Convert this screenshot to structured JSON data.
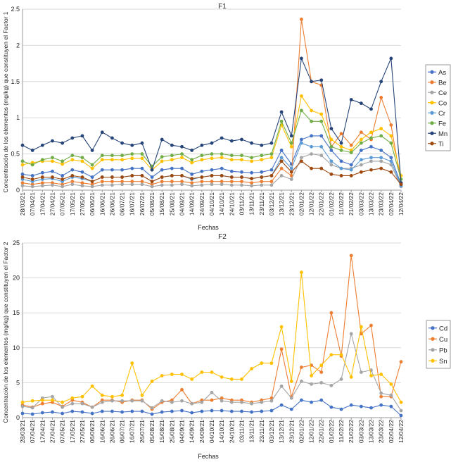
{
  "chart_data": [
    {
      "type": "line",
      "title": "F1",
      "xlabel": "Fechas",
      "ylabel": "Concentración de los elementos (mg/kg) que constituyen el Factor 1",
      "ylim": [
        0,
        2.5
      ],
      "yticks": [
        "0",
        "0.5",
        "1",
        "1.5",
        "2",
        "2.5"
      ],
      "ytick_values": [
        0,
        0.5,
        1,
        1.5,
        2,
        2.5
      ],
      "grid": true,
      "legend_position": "right",
      "x_dates": [
        "28/03/21",
        "07/04/21",
        "17/04/21",
        "27/04/21",
        "07/05/21",
        "17/05/21",
        "27/05/21",
        "06/06/21",
        "16/06/21",
        "26/06/21",
        "06/07/21",
        "16/07/21",
        "26/07/21",
        "05/08/21",
        "15/08/21",
        "25/08/21",
        "04/09/21",
        "14/09/21",
        "24/09/21",
        "04/10/21",
        "14/10/21",
        "24/10/21",
        "03/11/21",
        "13/11/21",
        "23/11/21",
        "03/12/21",
        "13/12/21",
        "23/12/21",
        "02/01/22",
        "12/01/22",
        "22/01/22",
        "01/02/22",
        "11/02/22",
        "21/02/22",
        "03/03/22",
        "13/03/22",
        "23/03/22",
        "02/04/22",
        "12/04/22"
      ],
      "series": [
        {
          "name": "As",
          "color": "#4472c4",
          "values": [
            0.22,
            0.2,
            0.24,
            0.26,
            0.2,
            0.28,
            0.25,
            0.18,
            0.28,
            0.28,
            0.28,
            0.3,
            0.3,
            0.18,
            0.28,
            0.3,
            0.3,
            0.22,
            0.26,
            0.28,
            0.3,
            0.26,
            0.25,
            0.24,
            0.25,
            0.28,
            0.55,
            0.36,
            0.7,
            0.75,
            0.75,
            0.55,
            0.4,
            0.35,
            0.55,
            0.6,
            0.55,
            0.45,
            0.08
          ]
        },
        {
          "name": "Be",
          "color": "#ed7d31",
          "values": [
            0.1,
            0.08,
            0.1,
            0.1,
            0.08,
            0.12,
            0.1,
            0.08,
            0.12,
            0.12,
            0.12,
            0.12,
            0.12,
            0.08,
            0.12,
            0.12,
            0.12,
            0.1,
            0.12,
            0.12,
            0.12,
            0.12,
            0.12,
            0.1,
            0.12,
            0.12,
            0.3,
            0.2,
            2.36,
            1.5,
            1.45,
            0.6,
            0.78,
            0.62,
            0.8,
            0.7,
            1.28,
            0.9,
            0.1
          ]
        },
        {
          "name": "Ce",
          "color": "#a5a5a5",
          "values": [
            0.06,
            0.05,
            0.06,
            0.07,
            0.05,
            0.08,
            0.06,
            0.05,
            0.07,
            0.07,
            0.08,
            0.08,
            0.08,
            0.05,
            0.07,
            0.07,
            0.08,
            0.06,
            0.07,
            0.08,
            0.08,
            0.07,
            0.07,
            0.06,
            0.07,
            0.07,
            0.2,
            0.15,
            0.45,
            0.5,
            0.48,
            0.35,
            0.3,
            0.3,
            0.35,
            0.4,
            0.4,
            0.35,
            0.05
          ]
        },
        {
          "name": "Co",
          "color": "#ffc000",
          "values": [
            0.35,
            0.38,
            0.4,
            0.4,
            0.36,
            0.42,
            0.4,
            0.3,
            0.42,
            0.42,
            0.42,
            0.44,
            0.44,
            0.28,
            0.4,
            0.42,
            0.45,
            0.38,
            0.42,
            0.44,
            0.45,
            0.42,
            0.42,
            0.4,
            0.42,
            0.45,
            0.9,
            0.6,
            1.3,
            1.1,
            1.05,
            0.7,
            0.6,
            0.55,
            0.7,
            0.8,
            0.85,
            0.75,
            0.2
          ]
        },
        {
          "name": "Cr",
          "color": "#5b9bd5",
          "values": [
            0.15,
            0.12,
            0.15,
            0.16,
            0.12,
            0.18,
            0.16,
            0.12,
            0.18,
            0.18,
            0.18,
            0.2,
            0.2,
            0.12,
            0.18,
            0.2,
            0.2,
            0.15,
            0.18,
            0.2,
            0.2,
            0.18,
            0.18,
            0.16,
            0.18,
            0.2,
            0.45,
            0.3,
            0.65,
            0.6,
            0.6,
            0.4,
            0.3,
            0.28,
            0.42,
            0.45,
            0.45,
            0.4,
            0.06
          ]
        },
        {
          "name": "Fe",
          "color": "#70ad47",
          "values": [
            0.4,
            0.35,
            0.42,
            0.45,
            0.4,
            0.48,
            0.45,
            0.35,
            0.48,
            0.48,
            0.48,
            0.5,
            0.5,
            0.33,
            0.46,
            0.48,
            0.5,
            0.42,
            0.48,
            0.5,
            0.5,
            0.48,
            0.48,
            0.45,
            0.48,
            0.5,
            0.95,
            0.65,
            1.1,
            0.95,
            0.95,
            0.6,
            0.55,
            0.52,
            0.65,
            0.72,
            0.75,
            0.65,
            0.15
          ]
        },
        {
          "name": "Mn",
          "color": "#264478",
          "values": [
            0.62,
            0.55,
            0.62,
            0.68,
            0.65,
            0.72,
            0.75,
            0.55,
            0.8,
            0.72,
            0.65,
            0.62,
            0.65,
            0.28,
            0.7,
            0.62,
            0.6,
            0.55,
            0.62,
            0.65,
            0.72,
            0.68,
            0.7,
            0.65,
            0.62,
            0.65,
            1.08,
            0.75,
            1.82,
            1.5,
            1.52,
            0.85,
            0.65,
            1.25,
            1.2,
            1.12,
            1.5,
            1.82,
            0.1
          ]
        },
        {
          "name": "Ti",
          "color": "#9e480e",
          "values": [
            0.18,
            0.15,
            0.18,
            0.18,
            0.15,
            0.2,
            0.18,
            0.12,
            0.18,
            0.18,
            0.18,
            0.2,
            0.2,
            0.12,
            0.18,
            0.2,
            0.2,
            0.16,
            0.18,
            0.2,
            0.2,
            0.18,
            0.18,
            0.16,
            0.18,
            0.2,
            0.4,
            0.25,
            0.4,
            0.3,
            0.3,
            0.22,
            0.2,
            0.2,
            0.25,
            0.28,
            0.3,
            0.25,
            0.08
          ]
        }
      ]
    },
    {
      "type": "line",
      "title": "F2",
      "xlabel": "Fechas",
      "ylabel": "Concentración de los elementos (mg/kg) que constituyen el Factor 2",
      "ylim": [
        0,
        25
      ],
      "yticks": [
        "0",
        "5",
        "10",
        "15",
        "20",
        "25"
      ],
      "ytick_values": [
        0,
        5,
        10,
        15,
        20,
        25
      ],
      "grid": true,
      "legend_position": "right",
      "x_dates": [
        "28/03/21",
        "07/04/21",
        "17/04/21",
        "27/04/21",
        "07/05/21",
        "17/05/21",
        "27/05/21",
        "06/06/21",
        "16/06/21",
        "26/06/21",
        "06/07/21",
        "16/07/21",
        "26/07/21",
        "05/08/21",
        "15/08/21",
        "25/08/21",
        "04/09/21",
        "14/09/21",
        "24/09/21",
        "04/10/21",
        "14/10/21",
        "24/10/21",
        "03/11/21",
        "13/11/21",
        "23/11/21",
        "03/12/21",
        "13/12/21",
        "23/12/21",
        "02/01/22",
        "12/01/22",
        "22/01/22",
        "01/02/22",
        "11/02/22",
        "21/02/22",
        "03/03/22",
        "13/03/22",
        "23/03/22",
        "02/04/22",
        "12/04/22"
      ],
      "series": [
        {
          "name": "Cd",
          "color": "#4472c4",
          "values": [
            0.6,
            0.5,
            0.7,
            0.8,
            0.6,
            0.9,
            0.8,
            0.6,
            0.9,
            0.9,
            0.8,
            0.9,
            0.9,
            0.5,
            0.8,
            0.9,
            1.0,
            0.7,
            0.9,
            1.0,
            1.0,
            0.9,
            0.9,
            0.8,
            0.9,
            1.0,
            1.8,
            1.2,
            2.5,
            2.2,
            2.5,
            1.5,
            1.2,
            1.8,
            1.6,
            1.4,
            1.8,
            1.6,
            0.3
          ]
        },
        {
          "name": "Cu",
          "color": "#ed7d31",
          "values": [
            1.8,
            1.5,
            2.0,
            2.2,
            1.6,
            2.5,
            2.2,
            1.5,
            2.5,
            2.5,
            2.2,
            2.5,
            2.5,
            1.2,
            2.2,
            2.5,
            4.0,
            2.0,
            2.5,
            2.5,
            2.8,
            2.5,
            2.5,
            2.2,
            2.5,
            2.8,
            9.8,
            3.0,
            7.2,
            7.5,
            6.5,
            15.0,
            8.8,
            23.2,
            12.0,
            13.2,
            3.0,
            3.0,
            8.0
          ]
        },
        {
          "name": "Pb",
          "color": "#a5a5a5",
          "values": [
            1.6,
            1.4,
            2.8,
            3.0,
            1.5,
            2.0,
            2.0,
            1.5,
            2.2,
            2.4,
            2.4,
            2.4,
            2.4,
            1.4,
            2.4,
            2.2,
            2.4,
            2.0,
            2.2,
            3.6,
            2.4,
            2.2,
            2.2,
            2.0,
            2.2,
            2.4,
            4.5,
            2.8,
            5.2,
            4.8,
            5.0,
            4.6,
            5.5,
            12.0,
            6.5,
            6.8,
            3.5,
            3.2,
            1.0
          ]
        },
        {
          "name": "Sn",
          "color": "#ffc000",
          "values": [
            2.2,
            2.4,
            2.5,
            2.5,
            2.2,
            2.8,
            3.0,
            4.5,
            3.2,
            3.0,
            3.2,
            7.8,
            3.2,
            5.2,
            6.0,
            6.2,
            6.2,
            5.5,
            6.5,
            6.5,
            5.8,
            5.5,
            5.5,
            7.0,
            7.8,
            7.8,
            13.0,
            5.2,
            20.8,
            6.0,
            7.5,
            9.0,
            9.0,
            5.8,
            13.0,
            6.0,
            6.2,
            4.8,
            2.2
          ]
        }
      ]
    }
  ]
}
